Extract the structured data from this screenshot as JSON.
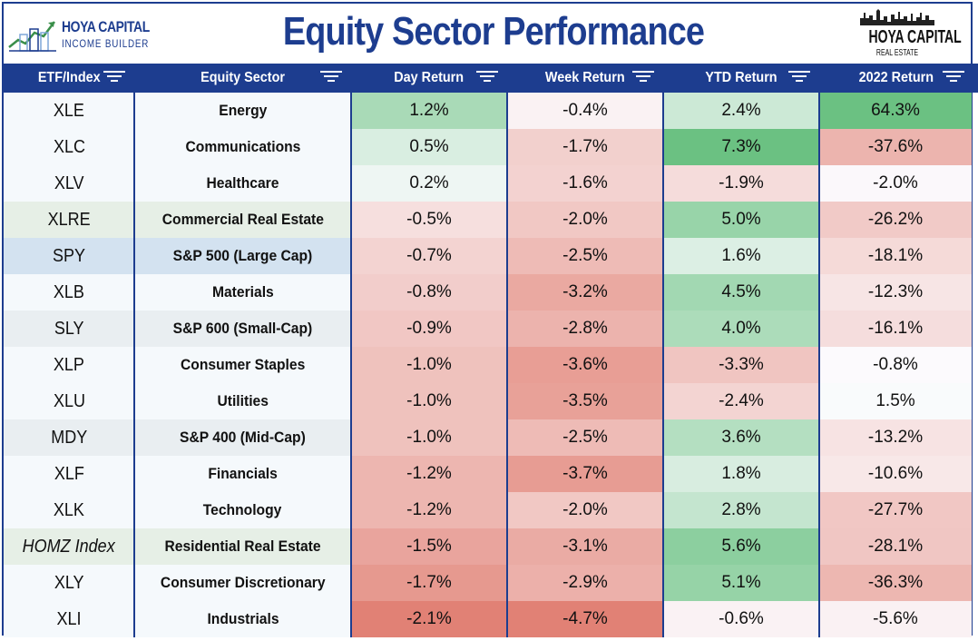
{
  "header": {
    "logo_left_line1": "HOYA CAPITAL",
    "logo_left_line2": "INCOME BUILDER",
    "title": "Equity Sector Performance",
    "logo_right_line1": "HOYA CAPITAL",
    "logo_right_line2": "REAL ESTATE"
  },
  "columns": [
    "ETF/Index",
    "Equity Sector",
    "Day Return",
    "Week Return",
    "YTD Return",
    "2022 Return"
  ],
  "rows": [
    {
      "etf": "XLE",
      "sector": "Energy",
      "day": "1.2%",
      "week": "-0.4%",
      "ytd": "2.4%",
      "y2022": "64.3%",
      "italic": false
    },
    {
      "etf": "XLC",
      "sector": "Communications",
      "day": "0.5%",
      "week": "-1.7%",
      "ytd": "7.3%",
      "y2022": "-37.6%",
      "italic": false
    },
    {
      "etf": "XLV",
      "sector": "Healthcare",
      "day": "0.2%",
      "week": "-1.6%",
      "ytd": "-1.9%",
      "y2022": "-2.0%",
      "italic": false
    },
    {
      "etf": "XLRE",
      "sector": "Commercial Real Estate",
      "day": "-0.5%",
      "week": "-2.0%",
      "ytd": "5.0%",
      "y2022": "-26.2%",
      "italic": false
    },
    {
      "etf": "SPY",
      "sector": "S&P 500 (Large Cap)",
      "day": "-0.7%",
      "week": "-2.5%",
      "ytd": "1.6%",
      "y2022": "-18.1%",
      "italic": false
    },
    {
      "etf": "XLB",
      "sector": "Materials",
      "day": "-0.8%",
      "week": "-3.2%",
      "ytd": "4.5%",
      "y2022": "-12.3%",
      "italic": false
    },
    {
      "etf": "SLY",
      "sector": "S&P 600 (Small-Cap)",
      "day": "-0.9%",
      "week": "-2.8%",
      "ytd": "4.0%",
      "y2022": "-16.1%",
      "italic": false
    },
    {
      "etf": "XLP",
      "sector": "Consumer Staples",
      "day": "-1.0%",
      "week": "-3.6%",
      "ytd": "-3.3%",
      "y2022": "-0.8%",
      "italic": false
    },
    {
      "etf": "XLU",
      "sector": "Utilities",
      "day": "-1.0%",
      "week": "-3.5%",
      "ytd": "-2.4%",
      "y2022": "1.5%",
      "italic": false
    },
    {
      "etf": "MDY",
      "sector": "S&P 400 (Mid-Cap)",
      "day": "-1.0%",
      "week": "-2.5%",
      "ytd": "3.6%",
      "y2022": "-13.2%",
      "italic": false
    },
    {
      "etf": "XLF",
      "sector": "Financials",
      "day": "-1.2%",
      "week": "-3.7%",
      "ytd": "1.8%",
      "y2022": "-10.6%",
      "italic": false
    },
    {
      "etf": "XLK",
      "sector": "Technology",
      "day": "-1.2%",
      "week": "-2.0%",
      "ytd": "2.8%",
      "y2022": "-27.7%",
      "italic": false
    },
    {
      "etf": "HOMZ Index",
      "sector": "Residential Real Estate",
      "day": "-1.5%",
      "week": "-3.1%",
      "ytd": "5.6%",
      "y2022": "-28.1%",
      "italic": true
    },
    {
      "etf": "XLY",
      "sector": "Consumer Discretionary",
      "day": "-1.7%",
      "week": "-2.9%",
      "ytd": "5.1%",
      "y2022": "-36.3%",
      "italic": false
    },
    {
      "etf": "XLI",
      "sector": "Industrials",
      "day": "-2.1%",
      "week": "-4.7%",
      "ytd": "-0.6%",
      "y2022": "-5.6%",
      "italic": false
    }
  ],
  "row_label_backgrounds": [
    "#f5f9fc",
    "#f5f9fc",
    "#f5f9fc",
    "#e6efe6",
    "#d3e2f0",
    "#f5f9fc",
    "#e9eef1",
    "#f5f9fc",
    "#f5f9fc",
    "#e9eef1",
    "#f5f9fc",
    "#f5f9fc",
    "#e6efe6",
    "#f5f9fc",
    "#f5f9fc"
  ],
  "colors": {
    "brand_blue": "#1d3d8f",
    "positive": "#63be7b",
    "negative": "#e07b6e",
    "neutral": "#fcfcff"
  }
}
